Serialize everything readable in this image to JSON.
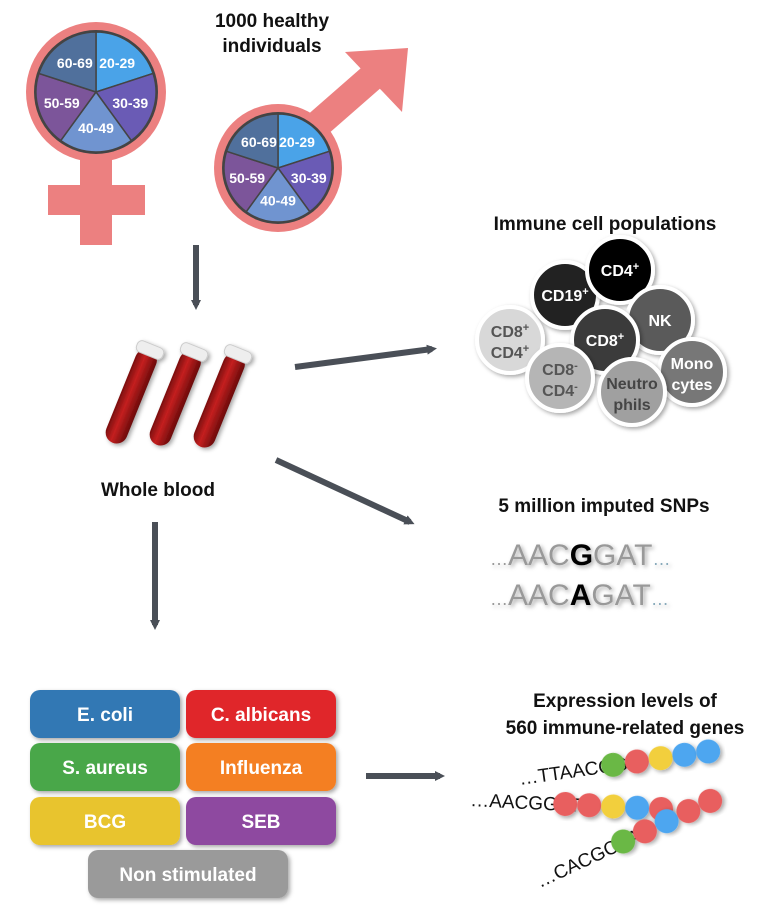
{
  "cohort": {
    "title_line1": "1000 healthy",
    "title_line2": "individuals",
    "age_groups": [
      "20-29",
      "30-39",
      "40-49",
      "50-59",
      "60-69"
    ],
    "age_colors": [
      "#4aa3e8",
      "#6a5bb5",
      "#7094d0",
      "#7c559a",
      "#50709c"
    ],
    "symbol_color": "#ec8080"
  },
  "blood": {
    "label": "Whole blood"
  },
  "cells": {
    "title": "Immune cell populations",
    "items": [
      {
        "l1": "CD8",
        "s1": "+",
        "l2": "CD4",
        "s2": "+",
        "fill": "#d8d8d8",
        "text": "#555"
      },
      {
        "l1": "CD19",
        "s1": "+",
        "fill": "#222",
        "text": "#fff"
      },
      {
        "l1": "CD4",
        "s1": "+",
        "fill": "#000",
        "text": "#fff"
      },
      {
        "l1": "NK",
        "fill": "#5a5a5a",
        "text": "#fff"
      },
      {
        "l1": "CD8",
        "s1": "+",
        "fill": "#3a3a3a",
        "text": "#fff"
      },
      {
        "l1": "CD8",
        "s1": "-",
        "l2": "CD4",
        "s2": "-",
        "fill": "#b5b5b5",
        "text": "#555"
      },
      {
        "l1": "Mono",
        "l2": "cytes",
        "fill": "#777",
        "text": "#fff"
      },
      {
        "l1": "Neutro",
        "l2": "phils",
        "fill": "#a0a0a0",
        "text": "#444"
      }
    ]
  },
  "snps": {
    "title": "5 million imputed SNPs",
    "seq1": {
      "pre": "…",
      "left": "AAC",
      "variant": "G",
      "right": "GAT",
      "post": "…"
    },
    "seq2": {
      "pre": "…",
      "left": "AAC",
      "variant": "A",
      "right": "GAT",
      "post": "…"
    }
  },
  "stimuli": [
    {
      "label": "E. coli",
      "color": "#3378b4"
    },
    {
      "label": "C. albicans",
      "color": "#e0262b"
    },
    {
      "label": "S. aureus",
      "color": "#4aa74a"
    },
    {
      "label": "Influenza",
      "color": "#f47f21"
    },
    {
      "label": "BCG",
      "color": "#e8c42e"
    },
    {
      "label": "SEB",
      "color": "#8e4aa0"
    },
    {
      "label": "Non stimulated",
      "color": "#9a9a9a"
    }
  ],
  "expression": {
    "title_line1": "Expression levels of",
    "title_line2": "560 immune-related genes",
    "rows": [
      {
        "seq": "…TTAACGG",
        "beads": [
          "#6ab844",
          "#e85e5e",
          "#f2cf3c",
          "#4ea6f0",
          "#4ea6f0"
        ]
      },
      {
        "seq": "…AACGGAT",
        "beads": [
          "#e85e5e",
          "#e85e5e",
          "#f2cf3c",
          "#4ea6f0",
          "#e85e5e"
        ]
      },
      {
        "seq": "…CACGCAA",
        "beads": [
          "#6ab844",
          "#e85e5e",
          "#4ea6f0",
          "#e85e5e",
          "#e85e5e"
        ]
      }
    ]
  },
  "arrow_color": "#4a4f57"
}
